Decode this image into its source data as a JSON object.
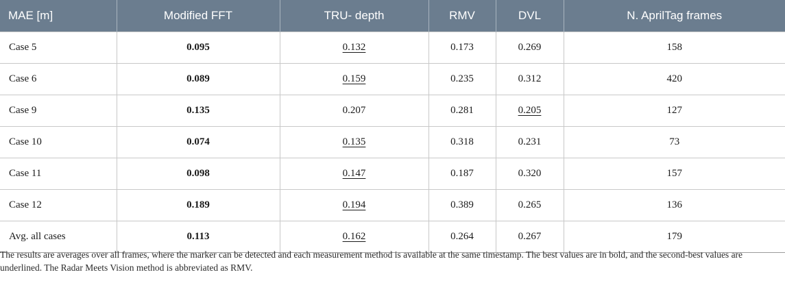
{
  "table": {
    "headers": [
      "MAE [m]",
      "Modified FFT",
      "TRU- depth",
      "RMV",
      "DVL",
      "N. AprilTag frames"
    ],
    "rows": [
      {
        "case": "Case 5",
        "fft": "0.095",
        "tru": "0.132",
        "rmv": "0.173",
        "dvl": "0.269",
        "frames": "158"
      },
      {
        "case": "Case 6",
        "fft": "0.089",
        "tru": "0.159",
        "rmv": "0.235",
        "dvl": "0.312",
        "frames": "420"
      },
      {
        "case": "Case 9",
        "fft": "0.135",
        "tru": "0.207",
        "rmv": "0.281",
        "dvl": "0.205",
        "frames": "127"
      },
      {
        "case": "Case 10",
        "fft": "0.074",
        "tru": "0.135",
        "rmv": "0.318",
        "dvl": "0.231",
        "frames": "73"
      },
      {
        "case": "Case 11",
        "fft": "0.098",
        "tru": "0.147",
        "rmv": "0.187",
        "dvl": "0.320",
        "frames": "157"
      },
      {
        "case": "Case 12",
        "fft": "0.189",
        "tru": "0.194",
        "rmv": "0.389",
        "dvl": "0.265",
        "frames": "136"
      },
      {
        "case": "Avg. all cases",
        "fft": "0.113",
        "tru": "0.162",
        "rmv": "0.264",
        "dvl": "0.267",
        "frames": "179"
      }
    ]
  },
  "footnote": "The results are averages over all frames, where the marker can be detected and each measurement method is available at the same timestamp. The best values are in bold, and the second-best values are underlined. The Radar Meets Vision method is abbreviated as RMV.",
  "colors": {
    "header_bg": "#6b7d8f",
    "header_text": "#ffffff"
  }
}
